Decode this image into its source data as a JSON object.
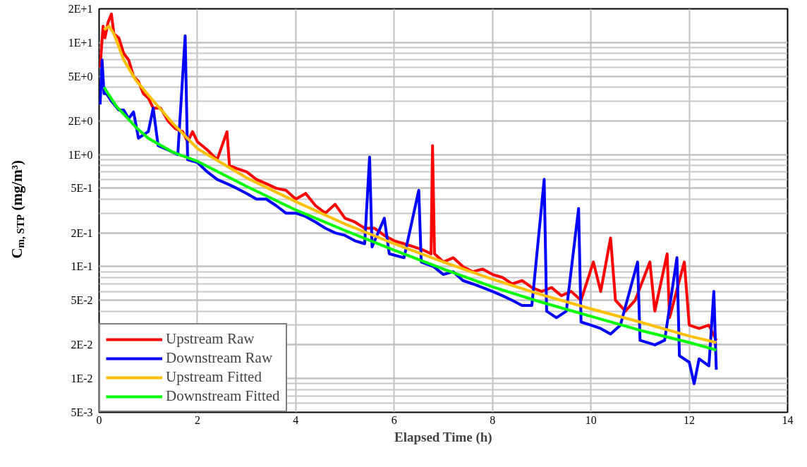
{
  "chart_data": {
    "type": "line",
    "xlabel": "Elapsed Time (h)",
    "ylabel": "C$_{m, STP}$ (mg/m³)",
    "log": true,
    "grid": true,
    "legend": "bottom left",
    "line_style": "solid",
    "marker": "none",
    "xlim": [
      0,
      14
    ],
    "xticks": [
      0,
      2,
      4,
      6,
      8,
      10,
      12,
      14
    ],
    "ylim": [
      0.005,
      20
    ],
    "yticks": [
      {
        "value": 0.005,
        "label": "5E-3"
      },
      {
        "value": 0.01,
        "label": "1E-2"
      },
      {
        "value": 0.02,
        "label": "2E-2"
      },
      {
        "value": 0.05,
        "label": "5E-2"
      },
      {
        "value": 0.1,
        "label": "1E-1"
      },
      {
        "value": 0.2,
        "label": "2E-1"
      },
      {
        "value": 0.5,
        "label": "5E-1"
      },
      {
        "value": 1,
        "label": "1E+0"
      },
      {
        "value": 2,
        "label": "2E+0"
      },
      {
        "value": 5,
        "label": "5E+0"
      },
      {
        "value": 10,
        "label": "1E+1"
      },
      {
        "value": 20,
        "label": "2E+1"
      }
    ],
    "series": [
      {
        "name": "Upstream Raw",
        "color": "#ff0000",
        "x": [
          0.02,
          0.08,
          0.12,
          0.18,
          0.25,
          0.3,
          0.4,
          0.5,
          0.6,
          0.7,
          0.8,
          0.9,
          1.0,
          1.1,
          1.25,
          1.4,
          1.55,
          1.7,
          1.8,
          1.9,
          2.0,
          2.2,
          2.4,
          2.6,
          2.65,
          2.8,
          3.0,
          3.2,
          3.4,
          3.6,
          3.8,
          4.0,
          4.2,
          4.4,
          4.6,
          4.8,
          5.0,
          5.2,
          5.4,
          5.6,
          5.8,
          6.0,
          6.2,
          6.4,
          6.6,
          6.75,
          6.78,
          6.82,
          7.0,
          7.2,
          7.4,
          7.6,
          7.8,
          8.0,
          8.2,
          8.4,
          8.6,
          8.8,
          9.0,
          9.2,
          9.4,
          9.6,
          9.8,
          10.05,
          10.2,
          10.4,
          10.5,
          10.7,
          10.9,
          11.2,
          11.3,
          11.55,
          11.6,
          11.9,
          12.0,
          12.2,
          12.4,
          12.55
        ],
        "values": [
          6,
          14,
          11,
          15,
          18,
          12,
          11,
          8,
          7,
          5,
          4.5,
          3.5,
          3.2,
          2.6,
          2.6,
          2.0,
          1.7,
          1.6,
          1.3,
          1.6,
          1.3,
          1.1,
          0.9,
          1.6,
          0.8,
          0.75,
          0.7,
          0.6,
          0.55,
          0.5,
          0.48,
          0.4,
          0.45,
          0.35,
          0.3,
          0.36,
          0.27,
          0.25,
          0.22,
          0.22,
          0.19,
          0.17,
          0.16,
          0.15,
          0.14,
          0.13,
          1.2,
          0.13,
          0.11,
          0.12,
          0.1,
          0.09,
          0.095,
          0.085,
          0.08,
          0.07,
          0.075,
          0.065,
          0.06,
          0.065,
          0.055,
          0.06,
          0.05,
          0.11,
          0.06,
          0.18,
          0.05,
          0.04,
          0.05,
          0.11,
          0.04,
          0.13,
          0.035,
          0.11,
          0.03,
          0.028,
          0.03,
          0.022
        ]
      },
      {
        "name": "Downstream Raw",
        "color": "#0000ff",
        "x": [
          0.02,
          0.06,
          0.1,
          0.15,
          0.25,
          0.4,
          0.5,
          0.6,
          0.7,
          0.8,
          0.9,
          1.0,
          1.1,
          1.2,
          1.4,
          1.6,
          1.75,
          1.8,
          2.0,
          2.2,
          2.4,
          2.6,
          2.8,
          3.0,
          3.2,
          3.4,
          3.6,
          3.8,
          4.0,
          4.2,
          4.4,
          4.6,
          4.8,
          5.0,
          5.2,
          5.4,
          5.5,
          5.55,
          5.8,
          5.9,
          6.2,
          6.5,
          6.55,
          6.8,
          7.0,
          7.2,
          7.4,
          7.6,
          7.8,
          8.0,
          8.2,
          8.4,
          8.6,
          8.8,
          9.05,
          9.1,
          9.3,
          9.5,
          9.75,
          9.8,
          10.0,
          10.2,
          10.4,
          10.6,
          10.95,
          11.0,
          11.3,
          11.5,
          11.75,
          11.8,
          12.0,
          12.1,
          12.2,
          12.4,
          12.5,
          12.55
        ],
        "values": [
          2.8,
          7,
          3.5,
          3.5,
          3.0,
          2.5,
          2.5,
          2.1,
          2.4,
          1.4,
          1.5,
          1.6,
          2.6,
          1.2,
          1.1,
          1.0,
          11.5,
          0.9,
          0.85,
          0.7,
          0.6,
          0.55,
          0.5,
          0.45,
          0.4,
          0.4,
          0.35,
          0.3,
          0.3,
          0.28,
          0.25,
          0.22,
          0.2,
          0.19,
          0.17,
          0.16,
          0.95,
          0.15,
          0.27,
          0.13,
          0.12,
          0.48,
          0.11,
          0.1,
          0.085,
          0.09,
          0.075,
          0.07,
          0.065,
          0.06,
          0.055,
          0.05,
          0.045,
          0.045,
          0.6,
          0.04,
          0.035,
          0.04,
          0.33,
          0.032,
          0.03,
          0.028,
          0.025,
          0.03,
          0.11,
          0.022,
          0.02,
          0.022,
          0.12,
          0.016,
          0.014,
          0.009,
          0.015,
          0.013,
          0.06,
          0.012
        ]
      },
      {
        "name": "Upstream Fitted",
        "color": "#ffc000",
        "x": [
          0.1,
          0.2,
          0.3,
          0.5,
          0.75,
          1,
          1.5,
          2,
          3,
          4,
          5,
          6,
          7,
          8,
          9,
          10,
          11,
          12,
          12.55
        ],
        "values": [
          13,
          14,
          12,
          7,
          4.6,
          3.4,
          1.9,
          1.13,
          0.62,
          0.38,
          0.24,
          0.16,
          0.11,
          0.077,
          0.056,
          0.042,
          0.032,
          0.024,
          0.021
        ]
      },
      {
        "name": "Downstream Fitted",
        "color": "#00ff00",
        "x": [
          0.1,
          0.2,
          0.35,
          0.5,
          0.75,
          1,
          1.5,
          2,
          3,
          4,
          5,
          6,
          7,
          8,
          9,
          10,
          11,
          12,
          12.55
        ],
        "values": [
          4.0,
          3.4,
          2.7,
          2.3,
          1.75,
          1.4,
          1.05,
          0.87,
          0.52,
          0.32,
          0.21,
          0.14,
          0.095,
          0.066,
          0.048,
          0.036,
          0.027,
          0.021,
          0.018
        ]
      }
    ]
  }
}
